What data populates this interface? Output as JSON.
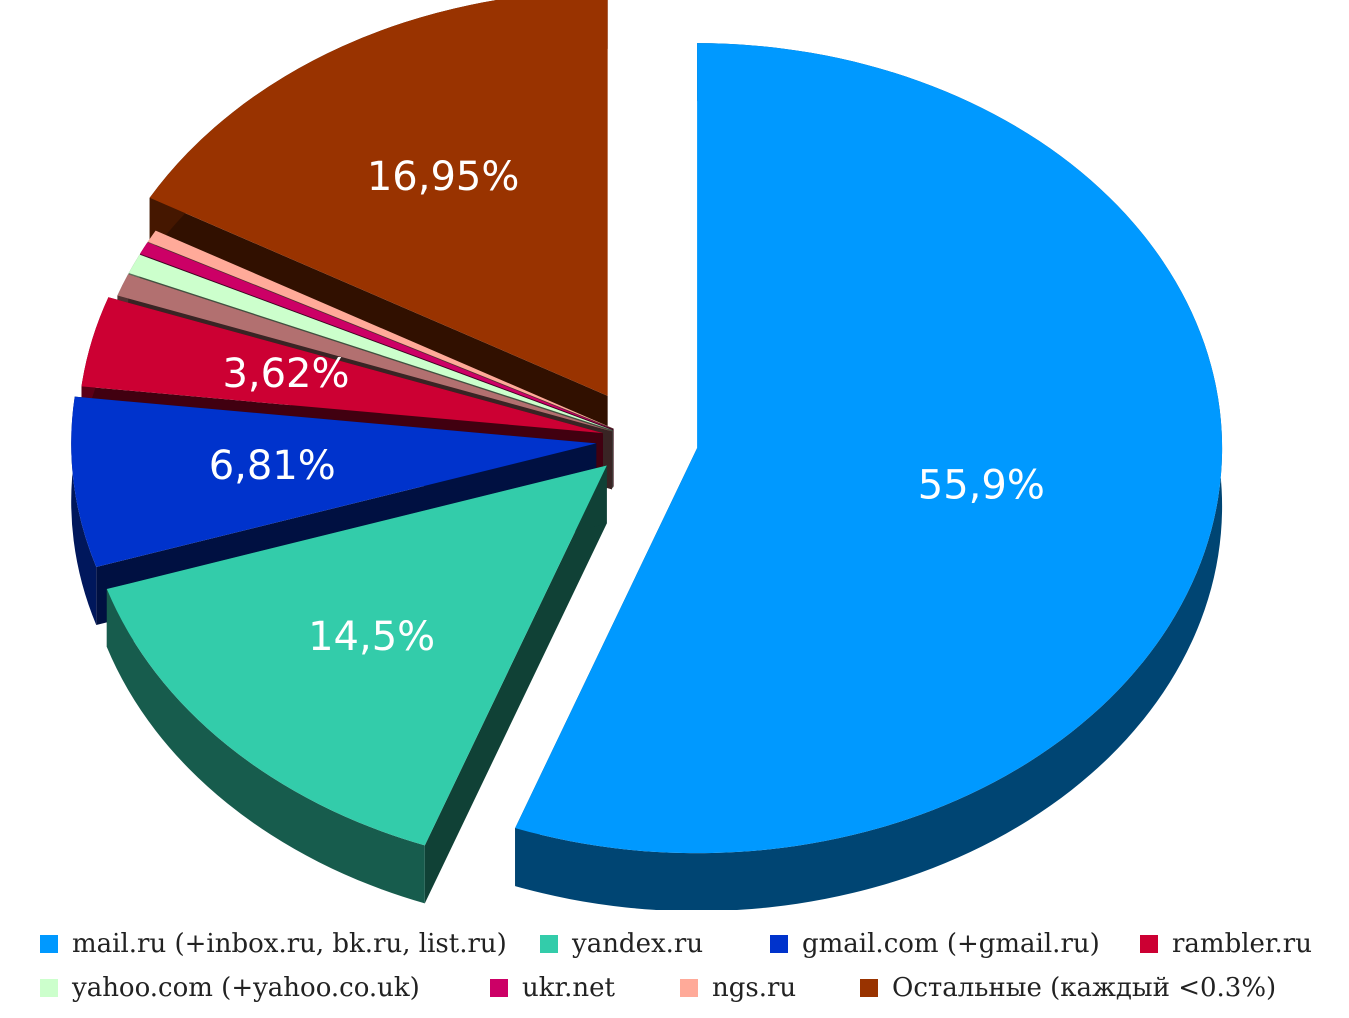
{
  "chart_data": {
    "type": "pie",
    "title": "",
    "slices": [
      {
        "name": "mail.ru (+inbox.ru, bk.ru, list.ru)",
        "value": 55.9,
        "label": "55,9%",
        "color": "#0099ff"
      },
      {
        "name": "yandex.ru",
        "value": 14.5,
        "label": "14,5%",
        "color": "#33ccaa"
      },
      {
        "name": "gmail.com (+gmail.ru)",
        "value": 6.81,
        "label": "6,81%",
        "color": "#0033cc"
      },
      {
        "name": "rambler.ru",
        "value": 3.62,
        "label": "3,62%",
        "color": "#cc0033"
      },
      {
        "name": "",
        "value": 0.9,
        "label": "",
        "color": "#b27070"
      },
      {
        "name": "yahoo.com (+yahoo.co.uk)",
        "value": 0.8,
        "label": "",
        "color": "#ccffcc"
      },
      {
        "name": "ukr.net",
        "value": 0.5,
        "label": "",
        "color": "#cc0066"
      },
      {
        "name": "ngs.ru",
        "value": 0.5,
        "label": "",
        "color": "#ffaa99"
      },
      {
        "name": "Остальные (каждый <0.3%)",
        "value": 16.95,
        "label": "16,95%",
        "color": "#993300"
      }
    ],
    "legend": {
      "placement": "bottom",
      "rows": [
        [
          {
            "label": "mail.ru (+inbox.ru, bk.ru, list.ru)",
            "color": "#0099ff"
          },
          {
            "label": "yandex.ru",
            "color": "#33ccaa"
          },
          {
            "label": "gmail.com (+gmail.ru)",
            "color": "#0033cc"
          },
          {
            "label": "rambler.ru",
            "color": "#cc0033"
          }
        ],
        [
          {
            "label": "yahoo.com (+yahoo.co.uk)",
            "color": "#ccffcc"
          },
          {
            "label": "ukr.net",
            "color": "#cc0066"
          },
          {
            "label": "ngs.ru",
            "color": "#ffaa99"
          },
          {
            "label": "Остальные (каждый <0.3%)",
            "color": "#993300"
          }
        ]
      ]
    }
  }
}
